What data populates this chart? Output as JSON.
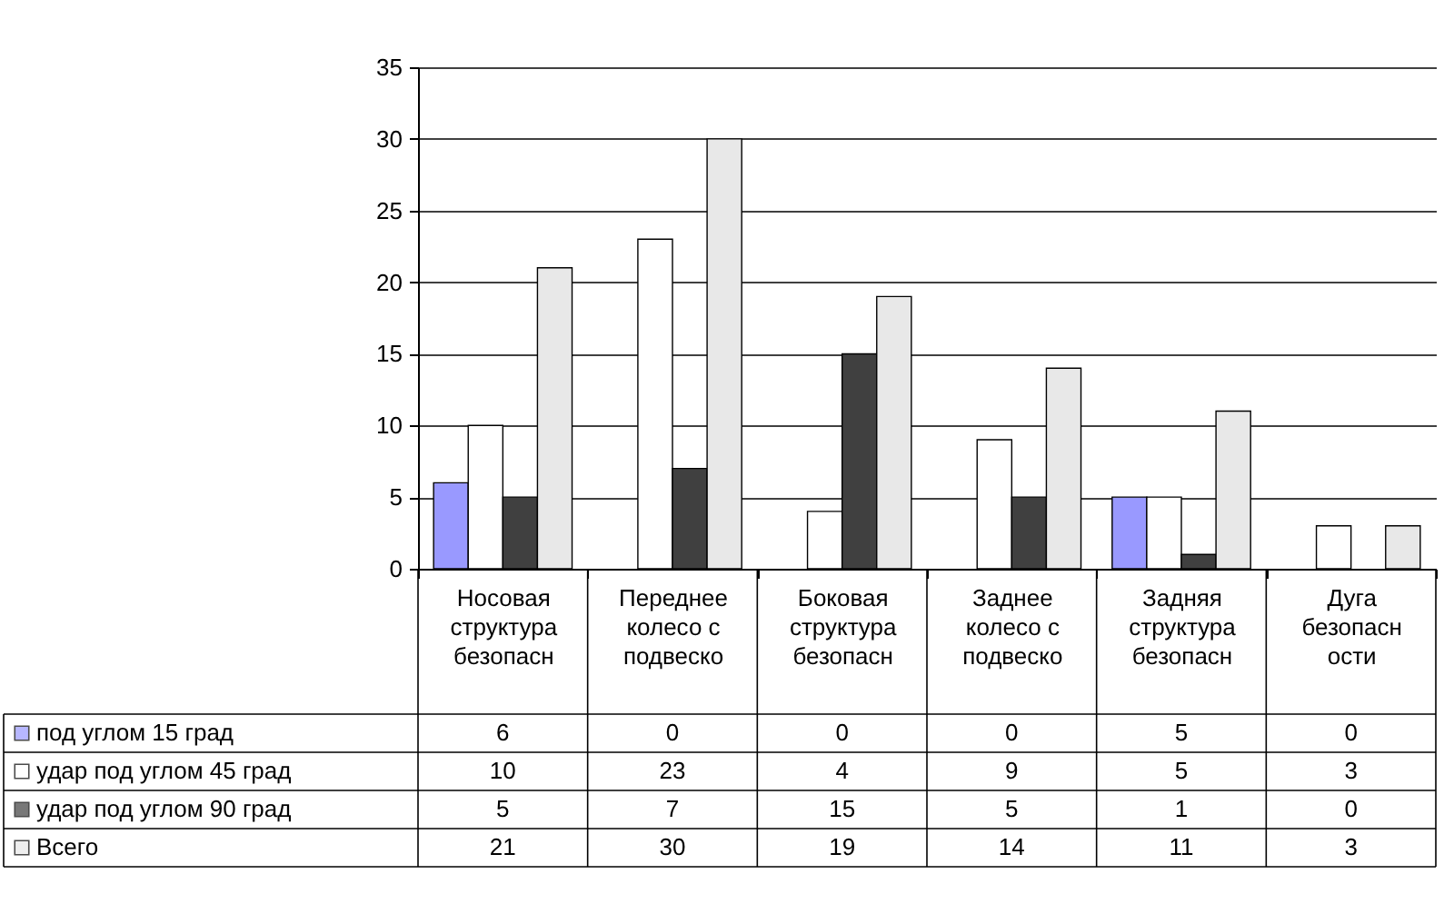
{
  "chart_data": {
    "type": "bar",
    "categories": [
      "Носовая структура безопасн",
      "Переднее колесо с подвеско",
      "Боковая структура безопасн",
      "Заднее колесо с подвеско",
      "Задняя структура безопасн",
      "Дуга безопасн ости"
    ],
    "series": [
      {
        "name": "под углом 15 град",
        "color": "#9999ff",
        "values": [
          6,
          0,
          0,
          0,
          5,
          0
        ]
      },
      {
        "name": "удар под углом 45 град",
        "color": "#ffffff",
        "values": [
          10,
          23,
          4,
          9,
          5,
          3
        ]
      },
      {
        "name": "удар под углом 90 град",
        "color": "#404040",
        "values": [
          5,
          7,
          15,
          5,
          1,
          0
        ]
      },
      {
        "name": "Всего",
        "color": "#e8e8e8",
        "values": [
          21,
          30,
          19,
          14,
          11,
          3
        ]
      }
    ],
    "ylim": [
      0,
      35
    ],
    "yticks": [
      0,
      5,
      10,
      15,
      20,
      25,
      30,
      35
    ],
    "grid": "y",
    "legend": "bottom left",
    "data_labels": true
  }
}
